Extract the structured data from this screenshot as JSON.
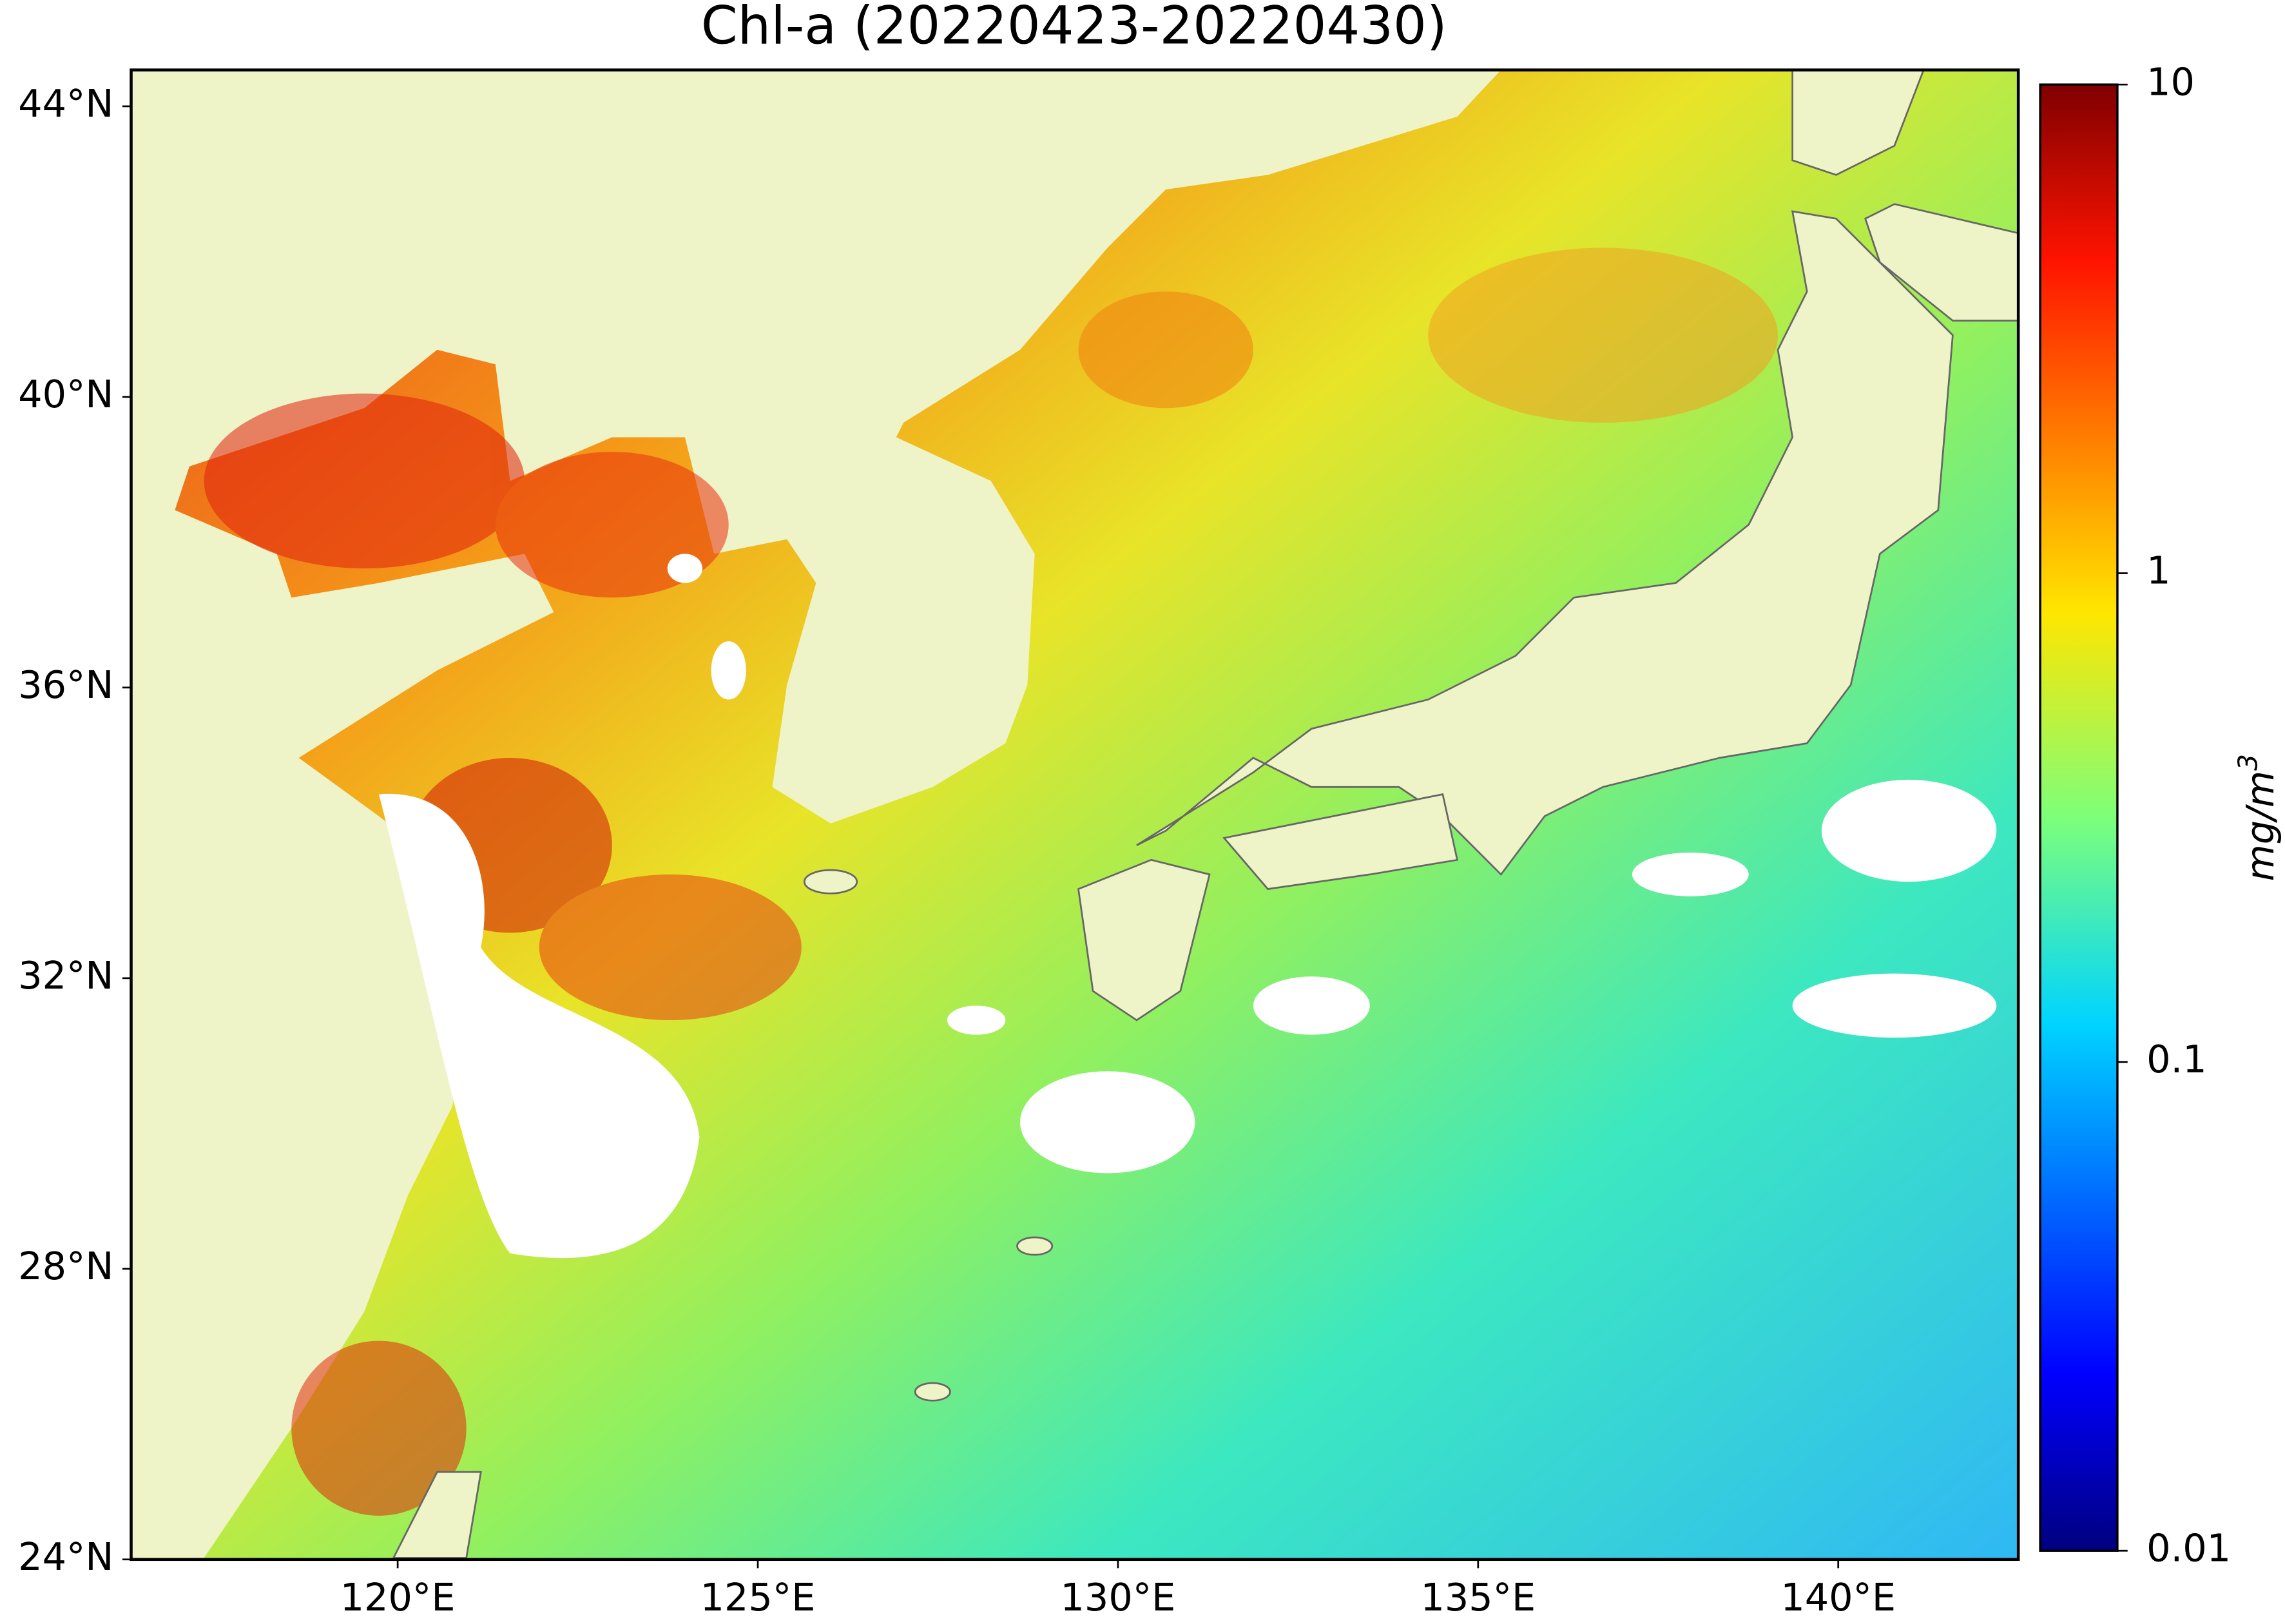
{
  "map": {
    "title": "Chl-a (20220423-20220430)",
    "xlim": [
      116.3,
      142.5
    ],
    "ylim": [
      24,
      44.5
    ],
    "xticks": [
      {
        "value": 120,
        "label": "120°E"
      },
      {
        "value": 125,
        "label": "125°E"
      },
      {
        "value": 130,
        "label": "130°E"
      },
      {
        "value": 135,
        "label": "135°E"
      },
      {
        "value": 140,
        "label": "140°E"
      }
    ],
    "yticks": [
      {
        "value": 24,
        "label": "24°N"
      },
      {
        "value": 28,
        "label": "28°N"
      },
      {
        "value": 32,
        "label": "32°N"
      },
      {
        "value": 36,
        "label": "36°N"
      },
      {
        "value": 40,
        "label": "40°N"
      },
      {
        "value": 44,
        "label": "44°N"
      }
    ],
    "colorbar": {
      "label_base": "mg/m",
      "label_exponent": "3",
      "lim": [
        0.01,
        10
      ],
      "log_scale": true,
      "ticks": [
        0.01,
        0.1,
        1,
        10
      ]
    }
  }
}
